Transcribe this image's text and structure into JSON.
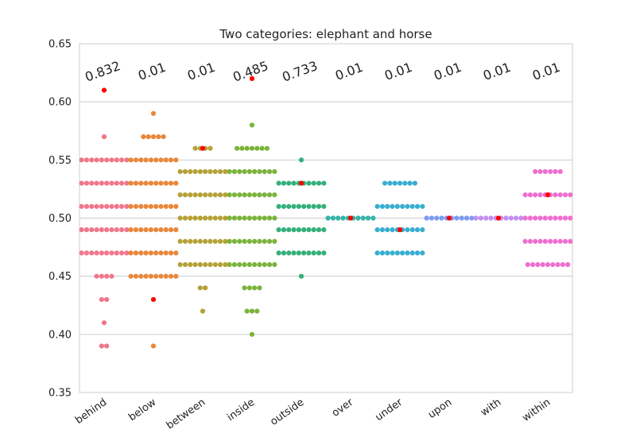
{
  "chart_data": {
    "type": "scatter",
    "subtype": "swarm",
    "title": "Two categories: elephant and horse",
    "xlabel": "",
    "ylabel": "",
    "ylim": [
      0.35,
      0.65
    ],
    "yticks": [
      "0.35",
      "0.40",
      "0.45",
      "0.50",
      "0.55",
      "0.60",
      "0.65"
    ],
    "grid": "horizontal",
    "legend": "none",
    "highlight_color": "#ff0000",
    "categories": [
      {
        "name": "behind",
        "pvalue": "0.832",
        "color": "#f0768a",
        "highlight": 0.61,
        "points": [
          {
            "y": 0.57,
            "n": 1
          },
          {
            "y": 0.55,
            "n": 10
          },
          {
            "y": 0.53,
            "n": 10
          },
          {
            "y": 0.51,
            "n": 10
          },
          {
            "y": 0.49,
            "n": 10
          },
          {
            "y": 0.47,
            "n": 10
          },
          {
            "y": 0.45,
            "n": 4
          },
          {
            "y": 0.43,
            "n": 2
          },
          {
            "y": 0.41,
            "n": 1
          },
          {
            "y": 0.39,
            "n": 2
          }
        ]
      },
      {
        "name": "below",
        "pvalue": "0.01",
        "color": "#e8873a",
        "highlight": 0.43,
        "points": [
          {
            "y": 0.59,
            "n": 1
          },
          {
            "y": 0.57,
            "n": 5
          },
          {
            "y": 0.55,
            "n": 10
          },
          {
            "y": 0.53,
            "n": 10
          },
          {
            "y": 0.51,
            "n": 10
          },
          {
            "y": 0.49,
            "n": 10
          },
          {
            "y": 0.47,
            "n": 10
          },
          {
            "y": 0.45,
            "n": 10
          },
          {
            "y": 0.39,
            "n": 1
          }
        ]
      },
      {
        "name": "between",
        "pvalue": "0.01",
        "color": "#b5a136",
        "highlight": 0.56,
        "points": [
          {
            "y": 0.56,
            "n": 4
          },
          {
            "y": 0.54,
            "n": 10
          },
          {
            "y": 0.52,
            "n": 10
          },
          {
            "y": 0.5,
            "n": 10
          },
          {
            "y": 0.48,
            "n": 10
          },
          {
            "y": 0.46,
            "n": 10
          },
          {
            "y": 0.44,
            "n": 2
          },
          {
            "y": 0.42,
            "n": 1
          }
        ]
      },
      {
        "name": "inside",
        "pvalue": "0.485",
        "color": "#7ab33a",
        "highlight": 0.62,
        "points": [
          {
            "y": 0.58,
            "n": 1
          },
          {
            "y": 0.56,
            "n": 7
          },
          {
            "y": 0.54,
            "n": 10
          },
          {
            "y": 0.52,
            "n": 10
          },
          {
            "y": 0.5,
            "n": 10
          },
          {
            "y": 0.48,
            "n": 10
          },
          {
            "y": 0.46,
            "n": 10
          },
          {
            "y": 0.44,
            "n": 4
          },
          {
            "y": 0.42,
            "n": 3
          },
          {
            "y": 0.4,
            "n": 1
          }
        ]
      },
      {
        "name": "outside",
        "pvalue": "0.733",
        "color": "#33b07a",
        "highlight": 0.53,
        "points": [
          {
            "y": 0.55,
            "n": 1
          },
          {
            "y": 0.53,
            "n": 10
          },
          {
            "y": 0.51,
            "n": 10
          },
          {
            "y": 0.49,
            "n": 10
          },
          {
            "y": 0.47,
            "n": 10
          },
          {
            "y": 0.45,
            "n": 1
          }
        ]
      },
      {
        "name": "over",
        "pvalue": "0.01",
        "color": "#35b3a6",
        "highlight": 0.5,
        "points": [
          {
            "y": 0.5,
            "n": 10
          }
        ]
      },
      {
        "name": "under",
        "pvalue": "0.01",
        "color": "#38aed0",
        "highlight": 0.49,
        "points": [
          {
            "y": 0.53,
            "n": 7
          },
          {
            "y": 0.51,
            "n": 10
          },
          {
            "y": 0.49,
            "n": 10
          },
          {
            "y": 0.47,
            "n": 10
          }
        ]
      },
      {
        "name": "upon",
        "pvalue": "0.01",
        "color": "#7d9cf0",
        "highlight": 0.5,
        "points": [
          {
            "y": 0.5,
            "n": 10
          }
        ]
      },
      {
        "name": "with",
        "pvalue": "0.01",
        "color": "#c28ef0",
        "highlight": 0.5,
        "points": [
          {
            "y": 0.5,
            "n": 10
          }
        ]
      },
      {
        "name": "within",
        "pvalue": "0.01",
        "color": "#ee6fd0",
        "highlight": 0.52,
        "points": [
          {
            "y": 0.54,
            "n": 6
          },
          {
            "y": 0.52,
            "n": 10
          },
          {
            "y": 0.5,
            "n": 10
          },
          {
            "y": 0.48,
            "n": 10
          },
          {
            "y": 0.46,
            "n": 9
          }
        ]
      }
    ]
  }
}
